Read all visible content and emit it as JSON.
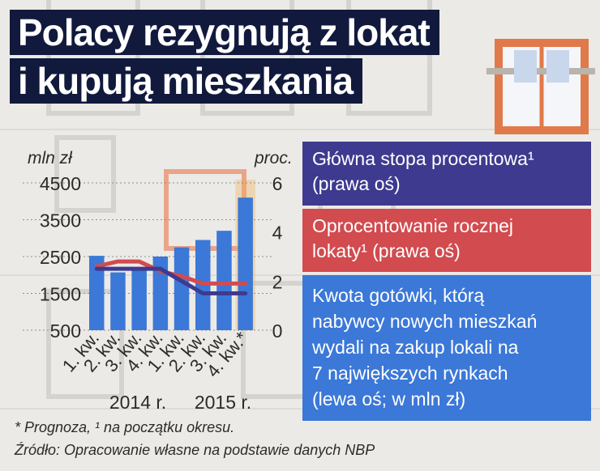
{
  "title": [
    "Polacy rezygnują z lokat",
    "i kupują mieszkania"
  ],
  "colors": {
    "title_bg": "#111a3d",
    "bars": "#3b78d8",
    "deposit_line": "#d24b4f",
    "policy_line": "#3e3a8f",
    "highlight": "#f2b055"
  },
  "chart_data": {
    "type": "bar",
    "categories": [
      "1. kw.",
      "2. kw.",
      "3. kw.",
      "4. kw.",
      "1. kw.",
      "2. kw.",
      "3. kw.",
      "4. kw.*"
    ],
    "year_groups": [
      "2014 r.",
      "2015 r."
    ],
    "left_unit": "mln zł",
    "right_unit": "proc.",
    "left_ticks": [
      "4500",
      "3500",
      "2500",
      "1500",
      "500"
    ],
    "right_ticks": [
      "6",
      "4",
      "2",
      "0"
    ],
    "ylim_left": [
      500,
      4500
    ],
    "ylim_right": [
      0,
      6
    ],
    "series": [
      {
        "name": "Kwota gotówki, którą nabywcy nowych mieszkań wydali na zakup lokali na 7 największych rynkach (lewa oś; w mln zł)",
        "type": "bar",
        "axis": "left",
        "values": [
          2520,
          2070,
          2150,
          2500,
          2750,
          2950,
          3200,
          4100
        ]
      },
      {
        "name": "Oprocentowanie rocznej lokaty¹ (prawa oś)",
        "type": "line",
        "axis": "right",
        "values": [
          2.6,
          2.8,
          2.8,
          2.4,
          2.2,
          1.9,
          1.9,
          1.9
        ]
      },
      {
        "name": "Główna stopa procentowa¹ (prawa oś)",
        "type": "line",
        "axis": "right",
        "values": [
          2.5,
          2.5,
          2.5,
          2.5,
          2.0,
          1.5,
          1.5,
          1.5
        ]
      }
    ],
    "forecast_category": "4. kw.*"
  },
  "legend": {
    "policy_rate": [
      "Główna stopa procentowa¹",
      "(prawa oś)"
    ],
    "deposit_rate": [
      "Oprocentowanie rocznej",
      "lokaty¹ (prawa oś)"
    ],
    "cash_amount": [
      "Kwota gotówki, którą",
      "nabywcy nowych mieszkań",
      "wydali na zakup lokali na",
      "7 największych rynkach",
      "(lewa oś; w mln zł)"
    ]
  },
  "footnote": "* Prognoza, ¹ na początku okresu.",
  "source": "Źródło: Opracowanie własne na podstawie danych NBP"
}
